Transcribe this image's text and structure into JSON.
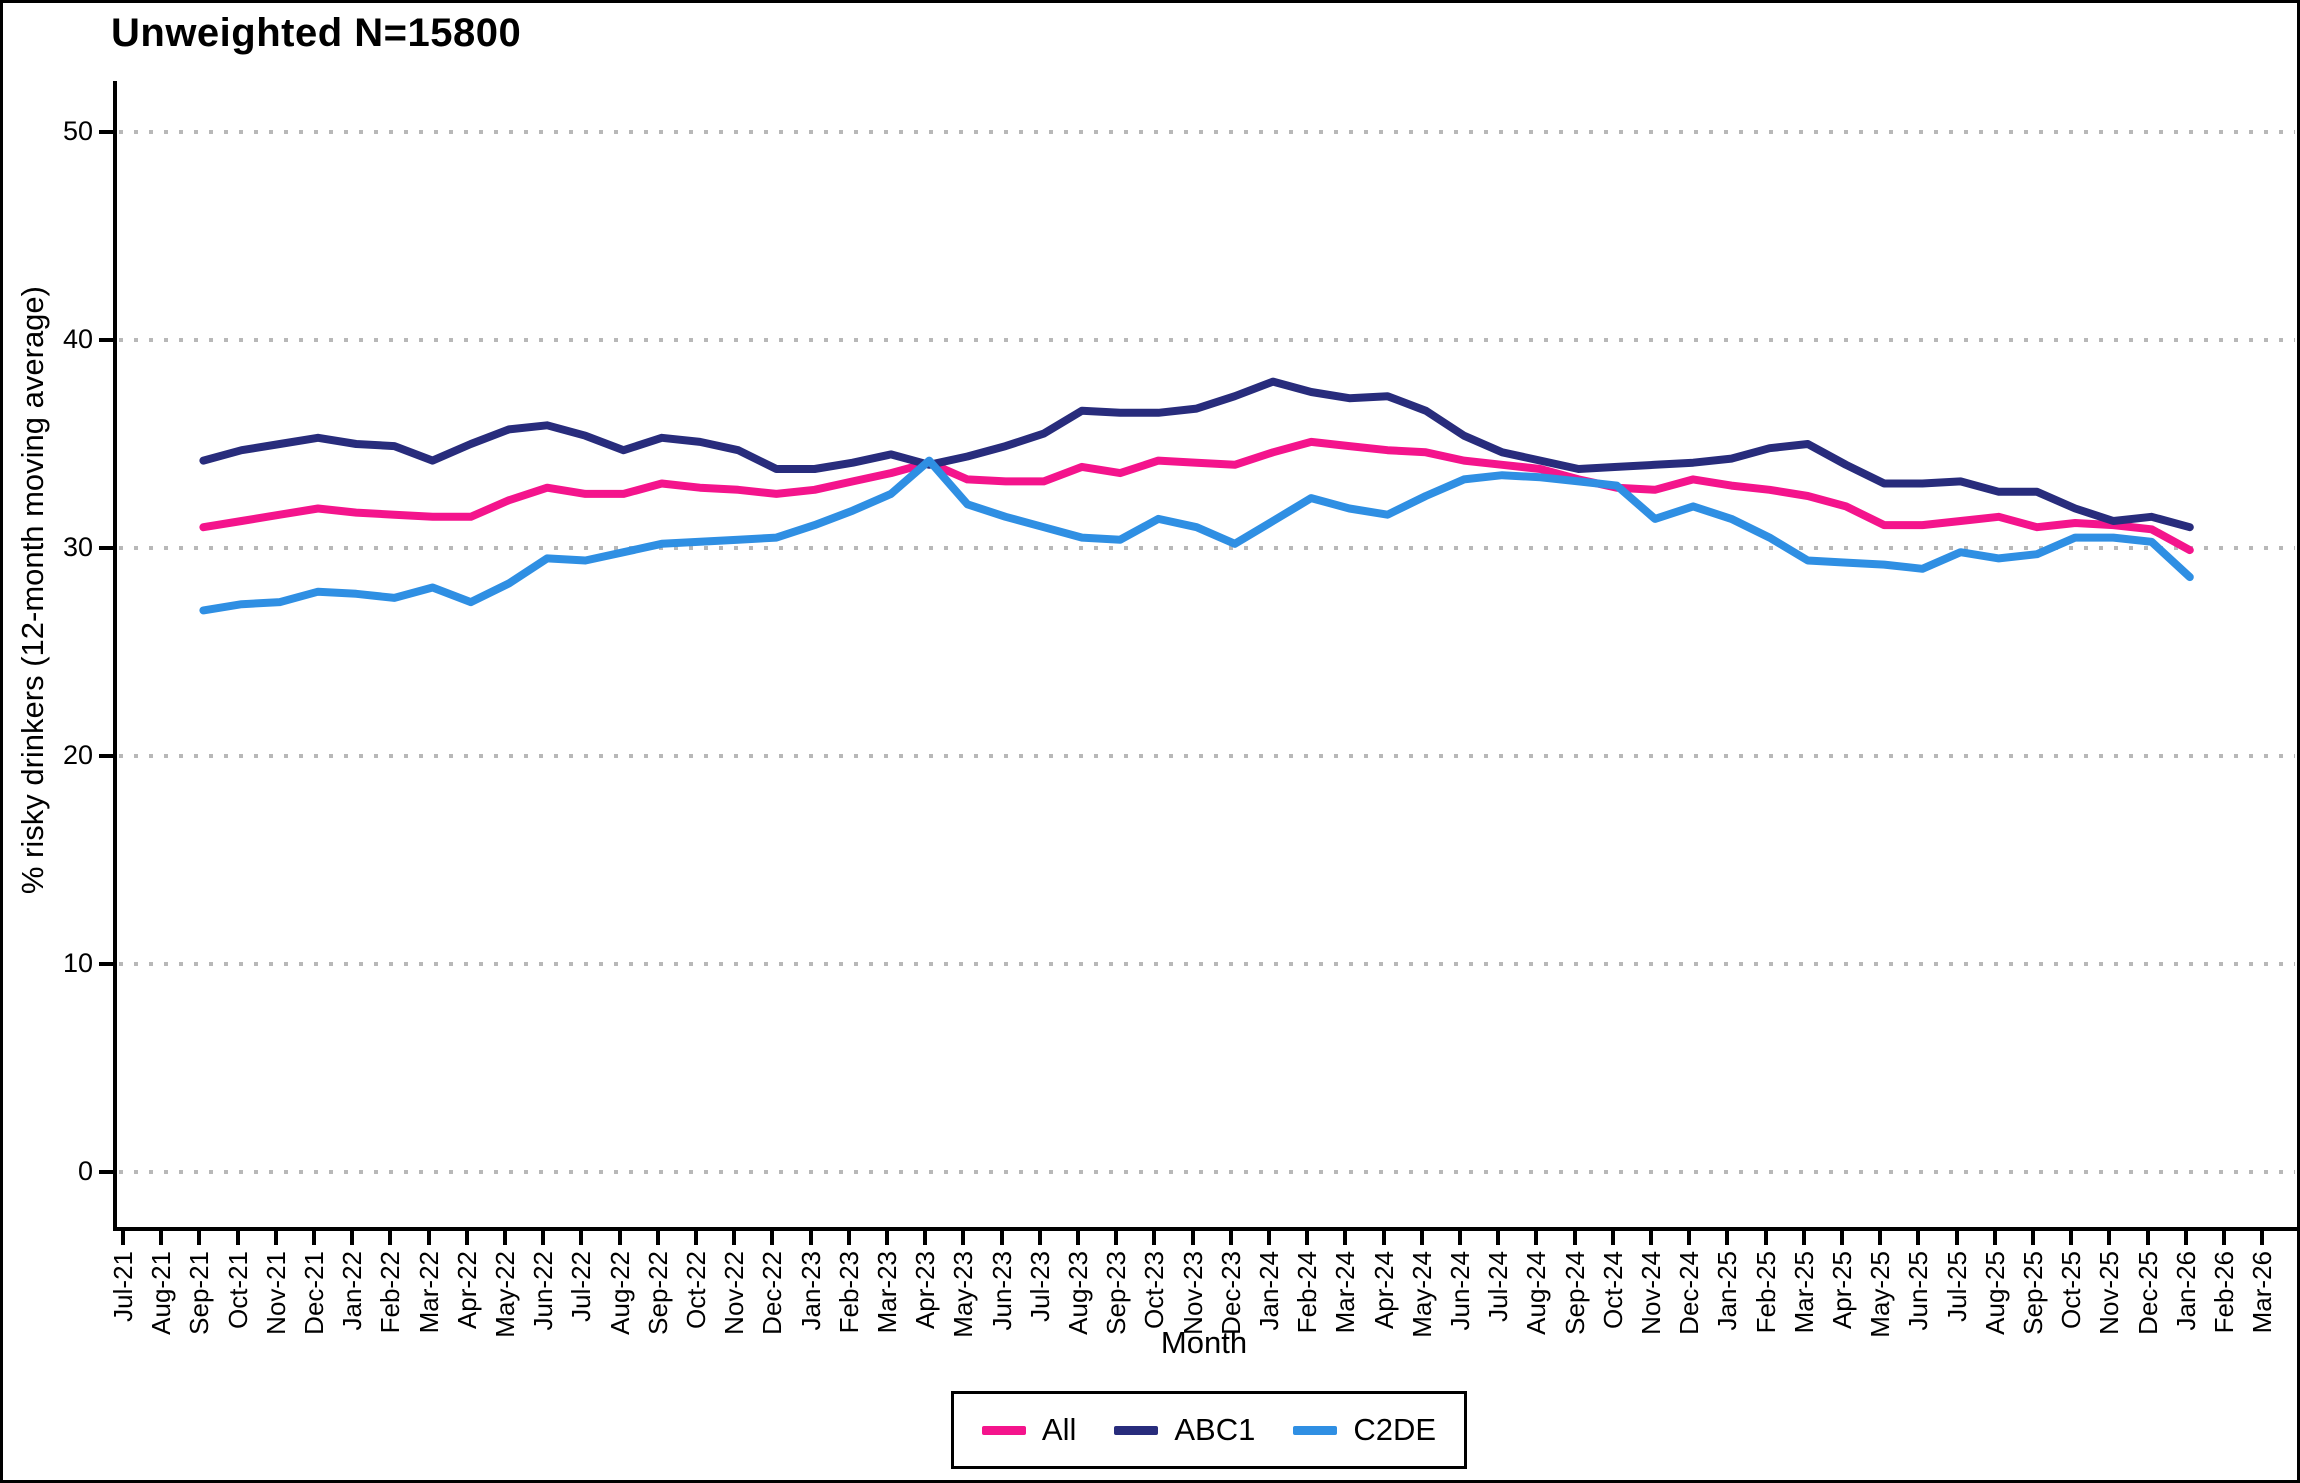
{
  "title": "Unweighted N=15800",
  "axes": {
    "y_title": "% risky drinkers (12-month moving average)",
    "x_title": "Month",
    "y_ticks": [
      0,
      10,
      20,
      30,
      40,
      50
    ]
  },
  "legend": [
    {
      "label": "All",
      "color": "#f4148c"
    },
    {
      "label": "ABC1",
      "color": "#282c7c"
    },
    {
      "label": "C2DE",
      "color": "#2f8fe3"
    }
  ],
  "chart_data": {
    "type": "line",
    "title": "Unweighted N=15800",
    "xlabel": "Month",
    "ylabel": "% risky drinkers (12-month moving average)",
    "ylim": [
      0,
      50
    ],
    "grid": "dotted-horizontal",
    "legend_position": "bottom-center-boxed",
    "x_labels": [
      "Jul-21",
      "Aug-21",
      "Sep-21",
      "Oct-21",
      "Nov-21",
      "Dec-21",
      "Jan-22",
      "Feb-22",
      "Mar-22",
      "Apr-22",
      "May-22",
      "Jun-22",
      "Jul-22",
      "Aug-22",
      "Sep-22",
      "Oct-22",
      "Nov-22",
      "Dec-22",
      "Jan-23",
      "Feb-23",
      "Mar-23",
      "Apr-23",
      "May-23",
      "Jun-23",
      "Jul-23",
      "Aug-23",
      "Sep-23",
      "Oct-23",
      "Nov-23",
      "Dec-23",
      "Jan-24",
      "Feb-24",
      "Mar-24",
      "Apr-24",
      "May-24",
      "Jun-24",
      "Jul-24",
      "Aug-24",
      "Sep-24",
      "Oct-24",
      "Nov-24",
      "Dec-24",
      "Jan-25",
      "Feb-25",
      "Mar-25",
      "Apr-25",
      "May-25",
      "Jun-25",
      "Jul-25",
      "Aug-25",
      "Sep-25",
      "Oct-25",
      "Nov-25",
      "Dec-25",
      "Jan-26",
      "Feb-26",
      "Mar-26"
    ],
    "series_start_index": 2,
    "series": [
      {
        "name": "All",
        "color": "#f4148c",
        "values": [
          31.0,
          31.3,
          31.6,
          31.9,
          31.7,
          31.6,
          31.5,
          31.5,
          32.3,
          32.9,
          32.6,
          32.6,
          33.1,
          32.9,
          32.8,
          32.6,
          32.8,
          33.2,
          33.6,
          34.1,
          33.3,
          33.2,
          33.2,
          33.9,
          33.6,
          34.2,
          34.1,
          34.0,
          34.6,
          35.1,
          34.9,
          34.7,
          34.6,
          34.2,
          34.0,
          33.8,
          33.3,
          32.9,
          32.8,
          33.3,
          33.0,
          32.8,
          32.5,
          32.0,
          31.1,
          31.1,
          31.3,
          31.5,
          31.0,
          31.2,
          31.1,
          30.9,
          29.9
        ]
      },
      {
        "name": "ABC1",
        "color": "#282c7c",
        "values": [
          34.2,
          34.7,
          35.0,
          35.3,
          35.0,
          34.9,
          34.2,
          35.0,
          35.7,
          35.9,
          35.4,
          34.7,
          35.3,
          35.1,
          34.7,
          33.8,
          33.8,
          34.1,
          34.5,
          34.0,
          34.4,
          34.9,
          35.5,
          36.6,
          36.5,
          36.5,
          36.7,
          37.3,
          38.0,
          37.5,
          37.2,
          37.3,
          36.6,
          35.4,
          34.6,
          34.2,
          33.8,
          33.9,
          34.0,
          34.1,
          34.3,
          34.8,
          35.0,
          34.0,
          33.1,
          33.1,
          33.2,
          32.7,
          32.7,
          31.9,
          31.3,
          31.5,
          31.0
        ]
      },
      {
        "name": "C2DE",
        "color": "#2f8fe3",
        "values": [
          27.0,
          27.3,
          27.4,
          27.9,
          27.8,
          27.6,
          28.1,
          27.4,
          28.3,
          29.5,
          29.4,
          29.8,
          30.2,
          30.3,
          30.4,
          30.5,
          31.1,
          31.8,
          32.6,
          34.2,
          32.1,
          31.5,
          31.0,
          30.5,
          30.4,
          31.4,
          31.0,
          30.2,
          31.3,
          32.4,
          31.9,
          31.6,
          32.5,
          33.3,
          33.5,
          33.4,
          33.2,
          33.0,
          31.4,
          32.0,
          31.4,
          30.5,
          29.4,
          29.3,
          29.2,
          29.0,
          29.8,
          29.5,
          29.7,
          30.5,
          30.5,
          30.3,
          28.6
        ]
      }
    ]
  }
}
